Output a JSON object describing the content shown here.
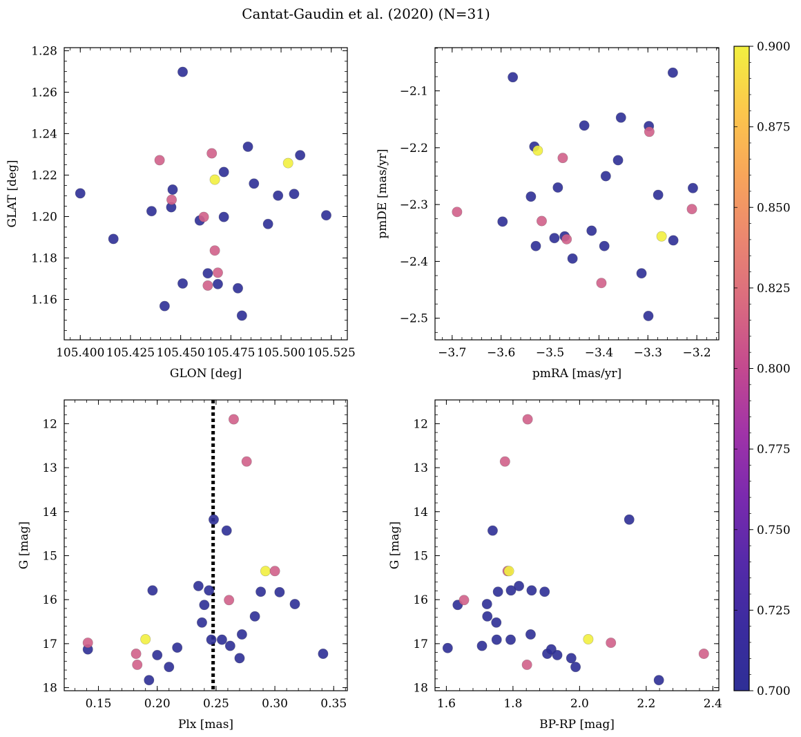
{
  "figure": {
    "title": "Cantat-Gaudin et al. (2020) (N=31)"
  },
  "colorbar": {
    "min": 0.7,
    "max": 0.9,
    "ticks": [
      "0.700",
      "0.725",
      "0.750",
      "0.775",
      "0.800",
      "0.825",
      "0.850",
      "0.875",
      "0.900"
    ],
    "cmap": "plasma",
    "colors": {
      "low": "#2e2f96",
      "mid": "#d0608a",
      "high": "#f2f040"
    }
  },
  "chart_data": [
    {
      "id": "panel-glon-glat",
      "type": "scatter",
      "title": "",
      "xlabel": "GLON [deg]",
      "ylabel": "GLAT [deg]",
      "xlim": [
        105.392,
        105.533
      ],
      "ylim": [
        1.1405,
        1.2815
      ],
      "xticks": [
        105.4,
        105.425,
        105.45,
        105.475,
        105.5,
        105.525
      ],
      "xtick_labels": [
        "105.400",
        "105.425",
        "105.450",
        "105.475",
        "105.500",
        "105.525"
      ],
      "yticks": [
        1.16,
        1.18,
        1.2,
        1.22,
        1.24,
        1.26,
        1.28
      ],
      "ytick_labels": [
        "1.16",
        "1.18",
        "1.20",
        "1.22",
        "1.24",
        "1.26",
        "1.28"
      ],
      "invert_y": false,
      "points": [
        {
          "x": 105.4,
          "y": 1.2112,
          "c": 0.7
        },
        {
          "x": 105.4165,
          "y": 1.1892,
          "c": 0.7
        },
        {
          "x": 105.4355,
          "y": 1.2026,
          "c": 0.7
        },
        {
          "x": 105.4395,
          "y": 1.2272,
          "c": 0.8
        },
        {
          "x": 105.4453,
          "y": 1.2045,
          "c": 0.7
        },
        {
          "x": 105.446,
          "y": 1.213,
          "c": 0.7
        },
        {
          "x": 105.4455,
          "y": 1.2081,
          "c": 0.8
        },
        {
          "x": 105.451,
          "y": 1.2698,
          "c": 0.7
        },
        {
          "x": 105.451,
          "y": 1.1677,
          "c": 0.7
        },
        {
          "x": 105.442,
          "y": 1.1568,
          "c": 0.7
        },
        {
          "x": 105.4595,
          "y": 1.1981,
          "c": 0.7
        },
        {
          "x": 105.4615,
          "y": 1.1998,
          "c": 0.8
        },
        {
          "x": 105.4635,
          "y": 1.1726,
          "c": 0.7
        },
        {
          "x": 105.4635,
          "y": 1.1667,
          "c": 0.8
        },
        {
          "x": 105.4655,
          "y": 1.2305,
          "c": 0.8
        },
        {
          "x": 105.467,
          "y": 1.2178,
          "c": 0.9
        },
        {
          "x": 105.467,
          "y": 1.1836,
          "c": 0.8
        },
        {
          "x": 105.4685,
          "y": 1.1729,
          "c": 0.8
        },
        {
          "x": 105.4685,
          "y": 1.1674,
          "c": 0.7
        },
        {
          "x": 105.4715,
          "y": 1.2215,
          "c": 0.7
        },
        {
          "x": 105.4715,
          "y": 1.1998,
          "c": 0.7
        },
        {
          "x": 105.4785,
          "y": 1.1654,
          "c": 0.7
        },
        {
          "x": 105.4805,
          "y": 1.1522,
          "c": 0.7
        },
        {
          "x": 105.4835,
          "y": 1.2337,
          "c": 0.7
        },
        {
          "x": 105.4865,
          "y": 1.2159,
          "c": 0.7
        },
        {
          "x": 105.4935,
          "y": 1.1964,
          "c": 0.7
        },
        {
          "x": 105.4985,
          "y": 1.2101,
          "c": 0.7
        },
        {
          "x": 105.5035,
          "y": 1.2258,
          "c": 0.9
        },
        {
          "x": 105.5065,
          "y": 1.2109,
          "c": 0.7
        },
        {
          "x": 105.5095,
          "y": 1.2296,
          "c": 0.7
        },
        {
          "x": 105.5225,
          "y": 1.2006,
          "c": 0.7
        }
      ]
    },
    {
      "id": "panel-pmra-pmde",
      "type": "scatter",
      "title": "",
      "xlabel": "pmRA [mas/yr]",
      "ylabel": "pmDE [mas/yr]",
      "xlim": [
        -3.735,
        -3.155
      ],
      "ylim": [
        -2.538,
        -2.024
      ],
      "xticks": [
        -3.7,
        -3.6,
        -3.5,
        -3.4,
        -3.3,
        -3.2
      ],
      "xtick_labels": [
        "−3.7",
        "−3.6",
        "−3.5",
        "−3.4",
        "−3.3",
        "−3.2"
      ],
      "yticks": [
        -2.5,
        -2.4,
        -2.3,
        -2.2,
        -2.1
      ],
      "ytick_labels": [
        "−2.5",
        "−2.4",
        "−2.3",
        "−2.2",
        "−2.1"
      ],
      "invert_y": false,
      "points": [
        {
          "x": -3.69,
          "y": -2.313,
          "c": 0.8
        },
        {
          "x": -3.597,
          "y": -2.33,
          "c": 0.7
        },
        {
          "x": -3.576,
          "y": -2.076,
          "c": 0.7
        },
        {
          "x": -3.539,
          "y": -2.286,
          "c": 0.7
        },
        {
          "x": -3.532,
          "y": -2.198,
          "c": 0.7
        },
        {
          "x": -3.525,
          "y": -2.205,
          "c": 0.9
        },
        {
          "x": -3.529,
          "y": -2.373,
          "c": 0.7
        },
        {
          "x": -3.517,
          "y": -2.329,
          "c": 0.8
        },
        {
          "x": -3.491,
          "y": -2.359,
          "c": 0.7
        },
        {
          "x": -3.484,
          "y": -2.27,
          "c": 0.7
        },
        {
          "x": -3.474,
          "y": -2.218,
          "c": 0.8
        },
        {
          "x": -3.47,
          "y": -2.356,
          "c": 0.7
        },
        {
          "x": -3.466,
          "y": -2.361,
          "c": 0.8
        },
        {
          "x": -3.454,
          "y": -2.395,
          "c": 0.7
        },
        {
          "x": -3.43,
          "y": -2.161,
          "c": 0.7
        },
        {
          "x": -3.415,
          "y": -2.346,
          "c": 0.7
        },
        {
          "x": -3.395,
          "y": -2.438,
          "c": 0.8
        },
        {
          "x": -3.389,
          "y": -2.373,
          "c": 0.7
        },
        {
          "x": -3.386,
          "y": -2.25,
          "c": 0.7
        },
        {
          "x": -3.361,
          "y": -2.222,
          "c": 0.7
        },
        {
          "x": -3.355,
          "y": -2.147,
          "c": 0.7
        },
        {
          "x": -3.313,
          "y": -2.421,
          "c": 0.7
        },
        {
          "x": -3.298,
          "y": -2.162,
          "c": 0.7
        },
        {
          "x": -3.297,
          "y": -2.172,
          "c": 0.8
        },
        {
          "x": -3.299,
          "y": -2.496,
          "c": 0.7
        },
        {
          "x": -3.279,
          "y": -2.283,
          "c": 0.7
        },
        {
          "x": -3.272,
          "y": -2.356,
          "c": 0.9
        },
        {
          "x": -3.249,
          "y": -2.068,
          "c": 0.7
        },
        {
          "x": -3.248,
          "y": -2.363,
          "c": 0.7
        },
        {
          "x": -3.208,
          "y": -2.271,
          "c": 0.7
        },
        {
          "x": -3.21,
          "y": -2.308,
          "c": 0.8
        }
      ]
    },
    {
      "id": "panel-plx-g",
      "type": "scatter",
      "title": "",
      "xlabel": "Plx [mas]",
      "ylabel": "G [mag]",
      "xlim": [
        0.1209,
        0.3616
      ],
      "ylim": [
        18.07,
        11.46
      ],
      "xticks": [
        0.15,
        0.2,
        0.25,
        0.3,
        0.35
      ],
      "xtick_labels": [
        "0.15",
        "0.20",
        "0.25",
        "0.30",
        "0.35"
      ],
      "yticks": [
        12,
        13,
        14,
        15,
        16,
        17,
        18
      ],
      "ytick_labels": [
        "12",
        "13",
        "14",
        "15",
        "16",
        "17",
        "18"
      ],
      "invert_y": true,
      "vline": {
        "x": 0.2475,
        "style": "dotted"
      },
      "points": [
        {
          "x": 0.141,
          "y": 17.13,
          "c": 0.7
        },
        {
          "x": 0.141,
          "y": 16.98,
          "c": 0.8
        },
        {
          "x": 0.182,
          "y": 17.23,
          "c": 0.8
        },
        {
          "x": 0.183,
          "y": 17.48,
          "c": 0.8
        },
        {
          "x": 0.19,
          "y": 16.9,
          "c": 0.9
        },
        {
          "x": 0.193,
          "y": 17.83,
          "c": 0.7
        },
        {
          "x": 0.196,
          "y": 15.79,
          "c": 0.7
        },
        {
          "x": 0.2,
          "y": 17.26,
          "c": 0.7
        },
        {
          "x": 0.21,
          "y": 17.53,
          "c": 0.7
        },
        {
          "x": 0.217,
          "y": 17.09,
          "c": 0.7
        },
        {
          "x": 0.235,
          "y": 15.69,
          "c": 0.7
        },
        {
          "x": 0.238,
          "y": 16.52,
          "c": 0.7
        },
        {
          "x": 0.24,
          "y": 16.12,
          "c": 0.7
        },
        {
          "x": 0.244,
          "y": 15.79,
          "c": 0.7
        },
        {
          "x": 0.246,
          "y": 16.91,
          "c": 0.7
        },
        {
          "x": 0.248,
          "y": 14.18,
          "c": 0.7
        },
        {
          "x": 0.255,
          "y": 16.91,
          "c": 0.7
        },
        {
          "x": 0.259,
          "y": 14.43,
          "c": 0.7
        },
        {
          "x": 0.261,
          "y": 16.01,
          "c": 0.8
        },
        {
          "x": 0.262,
          "y": 17.05,
          "c": 0.7
        },
        {
          "x": 0.265,
          "y": 11.9,
          "c": 0.8
        },
        {
          "x": 0.27,
          "y": 17.33,
          "c": 0.7
        },
        {
          "x": 0.272,
          "y": 16.79,
          "c": 0.7
        },
        {
          "x": 0.276,
          "y": 12.86,
          "c": 0.8
        },
        {
          "x": 0.283,
          "y": 16.38,
          "c": 0.7
        },
        {
          "x": 0.288,
          "y": 15.82,
          "c": 0.7
        },
        {
          "x": 0.292,
          "y": 15.35,
          "c": 0.9
        },
        {
          "x": 0.3,
          "y": 15.35,
          "c": 0.8
        },
        {
          "x": 0.304,
          "y": 15.83,
          "c": 0.7
        },
        {
          "x": 0.317,
          "y": 16.1,
          "c": 0.7
        },
        {
          "x": 0.341,
          "y": 17.23,
          "c": 0.7
        }
      ]
    },
    {
      "id": "panel-bprp-g",
      "type": "scatter",
      "title": "",
      "xlabel": "BP-RP [mag]",
      "ylabel": "G [mag]",
      "xlim": [
        1.566,
        2.418
      ],
      "ylim": [
        18.07,
        11.46
      ],
      "xticks": [
        1.6,
        1.8,
        2.0,
        2.2,
        2.4
      ],
      "xtick_labels": [
        "1.6",
        "1.8",
        "2.0",
        "2.2",
        "2.4"
      ],
      "yticks": [
        12,
        13,
        14,
        15,
        16,
        17,
        18
      ],
      "ytick_labels": [
        "12",
        "13",
        "14",
        "15",
        "16",
        "17",
        "18"
      ],
      "invert_y": true,
      "points": [
        {
          "x": 1.604,
          "y": 17.1,
          "c": 0.7
        },
        {
          "x": 1.634,
          "y": 16.12,
          "c": 0.7
        },
        {
          "x": 1.653,
          "y": 16.01,
          "c": 0.8
        },
        {
          "x": 1.707,
          "y": 17.05,
          "c": 0.7
        },
        {
          "x": 1.722,
          "y": 16.1,
          "c": 0.7
        },
        {
          "x": 1.723,
          "y": 16.38,
          "c": 0.7
        },
        {
          "x": 1.739,
          "y": 14.43,
          "c": 0.7
        },
        {
          "x": 1.75,
          "y": 16.52,
          "c": 0.7
        },
        {
          "x": 1.751,
          "y": 16.91,
          "c": 0.7
        },
        {
          "x": 1.755,
          "y": 15.82,
          "c": 0.7
        },
        {
          "x": 1.776,
          "y": 12.86,
          "c": 0.8
        },
        {
          "x": 1.784,
          "y": 15.35,
          "c": 0.8
        },
        {
          "x": 1.788,
          "y": 15.35,
          "c": 0.9
        },
        {
          "x": 1.793,
          "y": 16.91,
          "c": 0.7
        },
        {
          "x": 1.794,
          "y": 15.79,
          "c": 0.7
        },
        {
          "x": 1.818,
          "y": 15.69,
          "c": 0.7
        },
        {
          "x": 1.842,
          "y": 17.48,
          "c": 0.8
        },
        {
          "x": 1.844,
          "y": 11.9,
          "c": 0.8
        },
        {
          "x": 1.853,
          "y": 16.79,
          "c": 0.7
        },
        {
          "x": 1.856,
          "y": 15.79,
          "c": 0.7
        },
        {
          "x": 1.895,
          "y": 15.82,
          "c": 0.7
        },
        {
          "x": 1.903,
          "y": 17.23,
          "c": 0.7
        },
        {
          "x": 1.915,
          "y": 17.13,
          "c": 0.7
        },
        {
          "x": 1.933,
          "y": 17.26,
          "c": 0.7
        },
        {
          "x": 1.975,
          "y": 17.33,
          "c": 0.7
        },
        {
          "x": 1.988,
          "y": 17.53,
          "c": 0.7
        },
        {
          "x": 2.026,
          "y": 16.9,
          "c": 0.9
        },
        {
          "x": 2.094,
          "y": 16.98,
          "c": 0.8
        },
        {
          "x": 2.149,
          "y": 14.18,
          "c": 0.7
        },
        {
          "x": 2.238,
          "y": 17.83,
          "c": 0.7
        },
        {
          "x": 2.373,
          "y": 17.23,
          "c": 0.8
        }
      ]
    }
  ]
}
